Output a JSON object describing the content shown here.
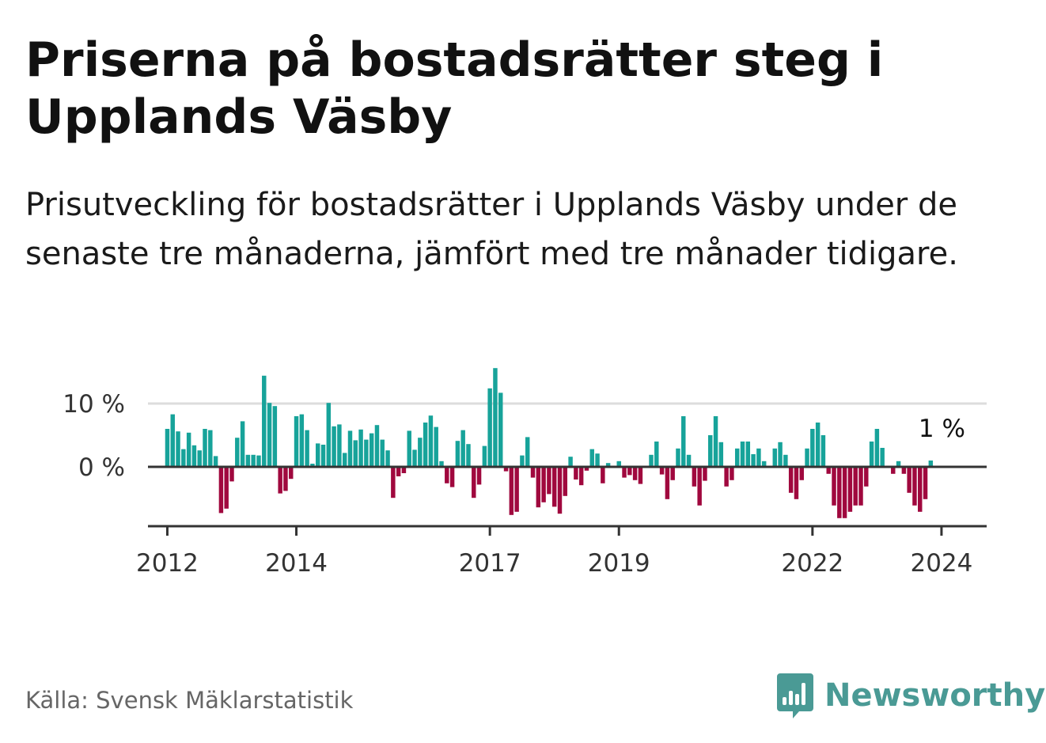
{
  "header": {
    "title": "Priserna på bostadsrätter steg i Upplands Väsby",
    "subtitle": "Prisutveckling för bostadsrätter i Upplands Väsby under de senaste tre månaderna, jämfört med tre månader tidigare."
  },
  "footer": {
    "source": "Källa: Svensk Mäklarstatistik",
    "brand": "Newsworthy"
  },
  "colors": {
    "positive": "#17a39a",
    "negative": "#a0083e",
    "axis": "#333333",
    "grid": "#dddddd",
    "brand": "#4a9a95"
  },
  "chart_data": {
    "type": "bar",
    "title": "",
    "xlabel": "",
    "ylabel": "",
    "ylim": [
      -9,
      16
    ],
    "y_ticks": [
      0,
      10
    ],
    "y_tick_labels": [
      "0 %",
      "10 %"
    ],
    "x_tick_years": [
      2012,
      2014,
      2017,
      2019,
      2022,
      2024
    ],
    "x_tick_labels": [
      "2012",
      "2014",
      "2017",
      "2019",
      "2022",
      "2024"
    ],
    "x_range": [
      2011.7,
      2024.7
    ],
    "bar_width_years": 0.067,
    "annotation": {
      "text": "1 %",
      "year": 2024.0,
      "value": 1.0
    },
    "series": [
      {
        "name": "Prisutveckling (%)",
        "start_year": 2012.0,
        "step_years": 0.0833333,
        "values": [
          6,
          8.3,
          5.6,
          2.8,
          5.4,
          3.4,
          2.6,
          6,
          5.8,
          1.7,
          -7.3,
          -6.6,
          -2.3,
          4.6,
          7.2,
          1.9,
          1.9,
          1.8,
          14.4,
          10.1,
          9.6,
          -4.2,
          -3.8,
          -1.9,
          8,
          8.3,
          5.8,
          0.5,
          3.7,
          3.5,
          10.1,
          6.4,
          6.7,
          2.2,
          5.7,
          4.2,
          5.9,
          4.3,
          5.3,
          6.6,
          4.3,
          2.6,
          -4.9,
          -1.5,
          -1,
          5.7,
          2.7,
          4.6,
          7,
          8.1,
          6.3,
          0.9,
          -2.6,
          -3.2,
          4.1,
          5.8,
          3.6,
          -4.9,
          -2.8,
          3.3,
          12.4,
          15.6,
          11.7,
          -0.7,
          -7.6,
          -7.1,
          1.8,
          4.7,
          -1.7,
          -6.4,
          -5.6,
          -4.3,
          -6.3,
          -7.4,
          -4.6,
          1.6,
          -2,
          -2.9,
          -0.6,
          2.8,
          2.1,
          -2.6,
          0.6,
          0,
          0.9,
          -1.7,
          -1.3,
          -2.1,
          -2.7,
          0,
          1.9,
          4,
          -1.2,
          -5.1,
          -2.1,
          2.9,
          8,
          1.9,
          -3.1,
          -6.1,
          -2.2,
          5,
          8,
          3.9,
          -3.1,
          -2.1,
          2.9,
          4,
          4,
          2,
          2.9,
          0.9,
          0,
          2.9,
          3.9,
          1.9,
          -4.1,
          -5.1,
          -2.1,
          2.9,
          6,
          7,
          5,
          -1.1,
          -6.1,
          -8.1,
          -8.1,
          -7.1,
          -6.1,
          -6.1,
          -3.1,
          4,
          6,
          3,
          0,
          -1.1,
          0.9,
          -1.1,
          -4.1,
          -6.1,
          -7.1,
          -5.1,
          1
        ]
      }
    ]
  }
}
